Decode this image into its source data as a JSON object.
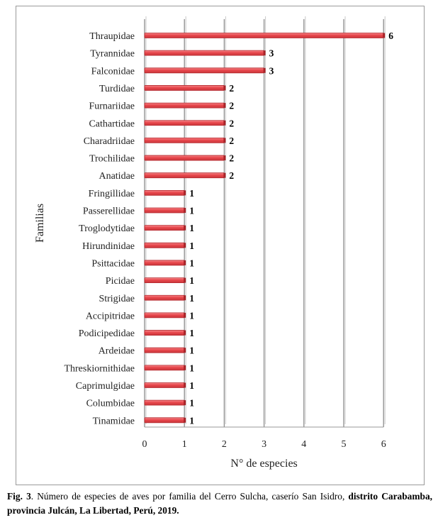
{
  "chart_data": {
    "type": "bar",
    "orientation": "horizontal",
    "categories": [
      "Thraupidae",
      "Tyrannidae",
      "Falconidae",
      "Turdidae",
      "Furnariidae",
      "Cathartidae",
      "Charadriidae",
      "Trochilidae",
      "Anatidae",
      "Fringillidae",
      "Passerellidae",
      "Troglodytidae",
      "Hirundinidae",
      "Psittacidae",
      "Picidae",
      "Strigidae",
      "Accipitridae",
      "Podicipedidae",
      "Ardeidae",
      "Threskiornithidae",
      "Caprimulgidae",
      "Columbidae",
      "Tinamidae"
    ],
    "values": [
      6,
      3,
      3,
      2,
      2,
      2,
      2,
      2,
      2,
      1,
      1,
      1,
      1,
      1,
      1,
      1,
      1,
      1,
      1,
      1,
      1,
      1,
      1
    ],
    "xlabel": "N° de especies",
    "ylabel": "Familias",
    "xlim": [
      0,
      6
    ],
    "xticks": [
      "0",
      "1",
      "2",
      "3",
      "4",
      "5",
      "6"
    ],
    "grid": "vertical",
    "bar_color": "#e8474c",
    "bar_edge_color": "#b5282e",
    "grid_color": "#8c8c8c"
  },
  "caption": {
    "prefix": "Fig. 3",
    "text": ". Número de especies de aves por familia del Cerro Sulcha, caserío San Isidro, ",
    "bold_tail": "distrito Carabamba, provincia Julcán, La Libertad, Perú, 2019."
  }
}
